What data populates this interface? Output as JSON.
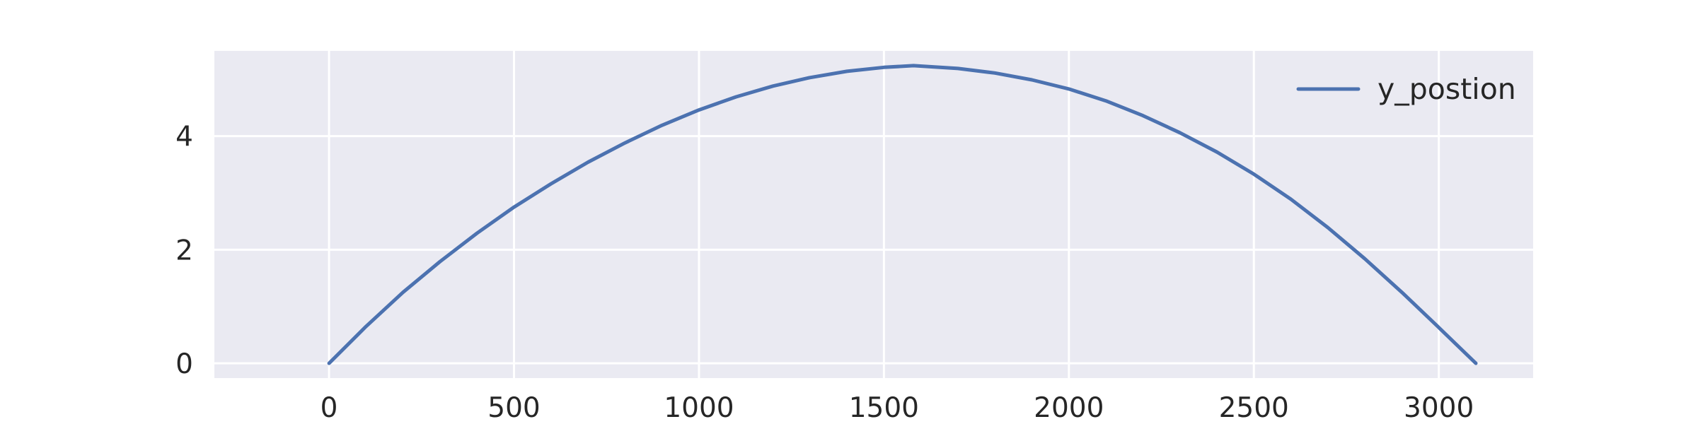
{
  "chart_data": {
    "type": "line",
    "title": "",
    "xlabel": "",
    "ylabel": "",
    "xlim": [
      -310,
      3255
    ],
    "ylim": [
      -0.26,
      5.5
    ],
    "xticks": [
      0,
      500,
      1000,
      1500,
      2000,
      2500,
      3000
    ],
    "yticks": [
      0,
      2,
      4
    ],
    "grid": true,
    "legend_position": "upper right",
    "series": [
      {
        "name": "y_postion",
        "color": "#4c72b0",
        "x": [
          0,
          100,
          200,
          300,
          400,
          500,
          600,
          700,
          800,
          900,
          1000,
          1100,
          1200,
          1300,
          1400,
          1500,
          1580,
          1700,
          1800,
          1900,
          2000,
          2100,
          2200,
          2300,
          2400,
          2500,
          2600,
          2700,
          2800,
          2900,
          3000,
          3100
        ],
        "y": [
          0.0,
          0.65,
          1.25,
          1.79,
          2.29,
          2.75,
          3.16,
          3.54,
          3.88,
          4.19,
          4.46,
          4.69,
          4.88,
          5.03,
          5.14,
          5.21,
          5.24,
          5.19,
          5.11,
          4.99,
          4.83,
          4.62,
          4.36,
          4.06,
          3.72,
          3.33,
          2.89,
          2.39,
          1.84,
          1.25,
          0.63,
          0.0
        ]
      }
    ]
  }
}
